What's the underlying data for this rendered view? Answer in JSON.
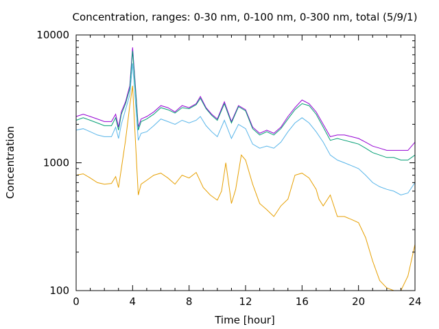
{
  "chart_data": {
    "type": "line",
    "title": "Concentration, ranges: 0-30 nm, 0-100 nm, 0-300 nm, total (5/9/1)",
    "xlabel": "Time [hour]",
    "ylabel": "Concentration",
    "xlim": [
      0,
      24
    ],
    "ylim": [
      100,
      10000
    ],
    "yscale": "log",
    "grid": false,
    "legend": "none",
    "x_ticks": [
      0,
      4,
      8,
      12,
      16,
      20,
      24
    ],
    "y_ticks": [
      100,
      1000,
      10000
    ],
    "series": [
      {
        "color": "#9400d3",
        "x": [
          0,
          0.5,
          1,
          1.5,
          2,
          2.5,
          2.8,
          3.0,
          3.2,
          3.5,
          3.8,
          4.0,
          4.2,
          4.4,
          4.6,
          5,
          5.5,
          6,
          6.5,
          7,
          7.5,
          8,
          8.5,
          8.8,
          9.2,
          9.6,
          10,
          10.5,
          11,
          11.5,
          12,
          12.5,
          13,
          13.5,
          14,
          14.5,
          15,
          15.5,
          16,
          16.5,
          17,
          17.5,
          18,
          18.5,
          19,
          19.5,
          20,
          20.5,
          21,
          21.5,
          22,
          22.5,
          23,
          23.5,
          24
        ],
        "y": [
          2300,
          2400,
          2300,
          2200,
          2100,
          2100,
          2400,
          1900,
          2500,
          3000,
          4000,
          8000,
          4000,
          1900,
          2200,
          2300,
          2500,
          2800,
          2700,
          2500,
          2800,
          2700,
          2900,
          3300,
          2700,
          2400,
          2200,
          3000,
          2100,
          2800,
          2600,
          1900,
          1700,
          1800,
          1700,
          1900,
          2300,
          2700,
          3100,
          2900,
          2500,
          2000,
          1600,
          1650,
          1650,
          1600,
          1550,
          1450,
          1350,
          1300,
          1250,
          1250,
          1250,
          1250,
          1450
        ]
      },
      {
        "color": "#009e73",
        "x": [
          0,
          0.5,
          1,
          1.5,
          2,
          2.5,
          2.8,
          3.0,
          3.2,
          3.5,
          3.8,
          4.0,
          4.2,
          4.4,
          4.6,
          5,
          5.5,
          6,
          6.5,
          7,
          7.5,
          8,
          8.5,
          8.8,
          9.2,
          9.6,
          10,
          10.5,
          11,
          11.5,
          12,
          12.5,
          13,
          13.5,
          14,
          14.5,
          15,
          15.5,
          16,
          16.5,
          17,
          17.5,
          18,
          18.5,
          19,
          19.5,
          20,
          20.5,
          21,
          21.5,
          22,
          22.5,
          23,
          23.5,
          24
        ],
        "y": [
          2150,
          2250,
          2150,
          2050,
          1950,
          1950,
          2250,
          1800,
          2400,
          2900,
          3800,
          7500,
          3800,
          1800,
          2100,
          2200,
          2400,
          2700,
          2600,
          2450,
          2700,
          2650,
          2850,
          3200,
          2650,
          2350,
          2150,
          2900,
          2050,
          2750,
          2550,
          1850,
          1650,
          1750,
          1650,
          1850,
          2200,
          2600,
          2900,
          2800,
          2400,
          1900,
          1500,
          1550,
          1500,
          1450,
          1400,
          1300,
          1200,
          1150,
          1100,
          1100,
          1050,
          1050,
          1150
        ]
      },
      {
        "color": "#56b4e9",
        "x": [
          0,
          0.5,
          1,
          1.5,
          2,
          2.5,
          2.8,
          3.0,
          3.2,
          3.5,
          3.8,
          4.0,
          4.2,
          4.4,
          4.6,
          5,
          5.5,
          6,
          6.5,
          7,
          7.5,
          8,
          8.5,
          8.8,
          9.2,
          9.6,
          10,
          10.5,
          11,
          11.5,
          12,
          12.5,
          13,
          13.5,
          14,
          14.5,
          15,
          15.5,
          16,
          16.5,
          17,
          17.5,
          18,
          18.5,
          19,
          19.5,
          20,
          20.5,
          21,
          21.5,
          22,
          22.5,
          23,
          23.5,
          24
        ],
        "y": [
          1800,
          1850,
          1750,
          1650,
          1600,
          1600,
          1900,
          1550,
          2000,
          2600,
          3400,
          6000,
          3000,
          1500,
          1700,
          1750,
          1950,
          2200,
          2100,
          2000,
          2150,
          2050,
          2150,
          2300,
          1950,
          1750,
          1600,
          2150,
          1550,
          2000,
          1850,
          1400,
          1300,
          1350,
          1300,
          1450,
          1750,
          2050,
          2250,
          2050,
          1750,
          1450,
          1150,
          1050,
          1000,
          950,
          900,
          800,
          700,
          650,
          620,
          600,
          560,
          580,
          700
        ]
      },
      {
        "color": "#e69f00",
        "x": [
          0,
          0.5,
          1,
          1.5,
          2,
          2.5,
          2.8,
          3.0,
          3.2,
          3.5,
          3.8,
          4.0,
          4.2,
          4.4,
          4.6,
          5,
          5.5,
          6,
          6.5,
          7,
          7.5,
          8,
          8.5,
          9,
          9.5,
          10,
          10.3,
          10.6,
          11,
          11.3,
          11.7,
          12,
          12.5,
          13,
          13.5,
          14,
          14.5,
          15,
          15.5,
          16,
          16.5,
          17,
          17.2,
          17.5,
          18,
          18.5,
          19,
          19.5,
          20,
          20.5,
          21,
          21.5,
          22,
          22.5,
          23,
          23.5,
          24
        ],
        "y": [
          800,
          820,
          760,
          700,
          680,
          690,
          780,
          640,
          900,
          1500,
          2800,
          4000,
          1500,
          560,
          680,
          730,
          800,
          830,
          760,
          680,
          800,
          760,
          840,
          640,
          560,
          510,
          600,
          1000,
          480,
          620,
          1150,
          1050,
          680,
          480,
          430,
          380,
          460,
          520,
          800,
          830,
          760,
          620,
          520,
          460,
          560,
          380,
          380,
          360,
          340,
          260,
          170,
          120,
          105,
          100,
          100,
          130,
          230
        ]
      }
    ]
  }
}
